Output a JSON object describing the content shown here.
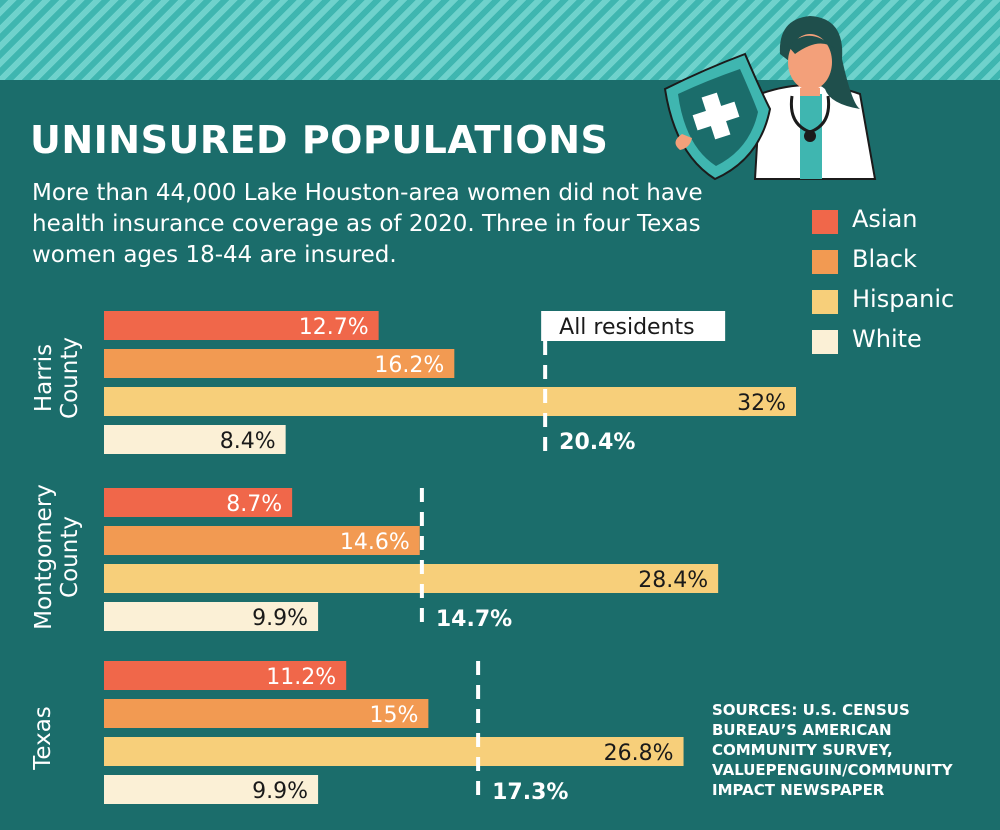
{
  "title": "UNINSURED POPULATIONS",
  "subtitle": "More than 44,000 Lake Houston-area women did not have health insurance coverage as of 2020. Three in four Texas women ages 18-44 are insured.",
  "sources": "SOURCES: U.S. CENSUS BUREAU’S AMERICAN COMMUNITY SURVEY, VALUEPENGUIN/COMMUNITY IMPACT NEWSPAPER",
  "illustration": {
    "icons": [
      "shield-cross-icon",
      "doctor-illustration"
    ]
  },
  "colors": {
    "background": "#1b6d6b",
    "Asian": "#f0674a",
    "Black": "#f29a52",
    "Hispanic": "#f7cf7a",
    "White": "#fbf0d6"
  },
  "chart_data": {
    "type": "bar",
    "orientation": "horizontal",
    "series_names": [
      "Asian",
      "Black",
      "Hispanic",
      "White"
    ],
    "reference_line_label": "All residents",
    "groups": [
      {
        "name": "Harris County",
        "name_lines": [
          "Harris",
          "County"
        ],
        "values": [
          12.7,
          16.2,
          32,
          8.4
        ],
        "labels": [
          "12.7%",
          "16.2%",
          "32%",
          "8.4%"
        ],
        "all_residents": 20.4,
        "all_residents_label": "20.4%"
      },
      {
        "name": "Montgomery County",
        "name_lines": [
          "Montgomery",
          "County"
        ],
        "values": [
          8.7,
          14.6,
          28.4,
          9.9
        ],
        "labels": [
          "8.7%",
          "14.6%",
          "28.4%",
          "9.9%"
        ],
        "all_residents": 14.7,
        "all_residents_label": "14.7%"
      },
      {
        "name": "Texas",
        "name_lines": [
          "Texas"
        ],
        "values": [
          11.2,
          15,
          26.8,
          9.9
        ],
        "labels": [
          "11.2%",
          "15%",
          "26.8%",
          "9.9%"
        ],
        "all_residents": 17.3,
        "all_residents_label": "17.3%"
      }
    ],
    "xlim": [
      0,
      32
    ]
  }
}
